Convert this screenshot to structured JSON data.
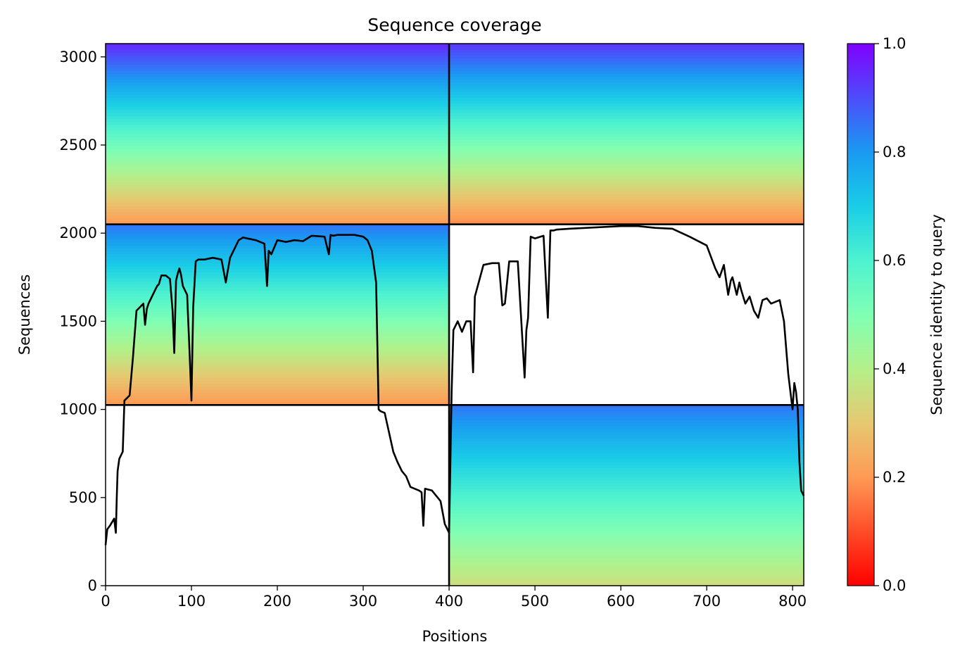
{
  "chart_data": {
    "type": "heatmap",
    "title": "Sequence coverage",
    "xlabel": "Positions",
    "ylabel": "Sequences",
    "xlim": [
      0,
      813
    ],
    "ylim": [
      0,
      3075
    ],
    "x_ticks": [
      "0",
      "100",
      "200",
      "300",
      "400",
      "500",
      "600",
      "700",
      "800"
    ],
    "y_ticks": [
      "0",
      "500",
      "1000",
      "1500",
      "2000",
      "2500",
      "3000"
    ],
    "colorbar": {
      "label": "Sequence identity to query",
      "range": [
        0.0,
        1.0
      ],
      "ticks": [
        "0.0",
        "0.2",
        "0.4",
        "0.6",
        "0.8",
        "1.0"
      ],
      "colormap": "rainbow_r"
    },
    "blocks": [
      {
        "x0": 0,
        "x1": 400,
        "y0": 2050,
        "y1": 3075,
        "filled_x": [
          0,
          400
        ],
        "identity_top": 0.95,
        "identity_bottom": 0.2
      },
      {
        "x0": 400,
        "x1": 813,
        "y0": 2050,
        "y1": 3075,
        "filled_x": [
          400,
          813
        ],
        "identity_top": 0.93,
        "identity_bottom": 0.18
      },
      {
        "x0": 0,
        "x1": 400,
        "y0": 1025,
        "y1": 2050,
        "filled_x": [
          0,
          400
        ],
        "identity_top": 0.85,
        "identity_bottom": 0.2
      },
      {
        "x0": 400,
        "x1": 813,
        "y0": 0,
        "y1": 1025,
        "filled_x": [
          400,
          813
        ],
        "identity_top": 0.85,
        "identity_bottom": 0.35
      }
    ],
    "block_boundaries": {
      "x": [
        400
      ],
      "y": [
        1025,
        2050
      ]
    },
    "coverage_line": {
      "x": [
        0,
        2,
        5,
        10,
        12,
        13,
        14,
        16,
        20,
        22,
        24,
        28,
        32,
        36,
        40,
        44,
        46,
        48,
        50,
        55,
        60,
        62,
        65,
        70,
        75,
        78,
        80,
        82,
        84,
        86,
        88,
        90,
        95,
        98,
        100,
        102,
        105,
        108,
        115,
        125,
        135,
        140,
        142,
        145,
        155,
        160,
        165,
        175,
        185,
        188,
        190,
        193,
        200,
        210,
        220,
        230,
        240,
        255,
        260,
        262,
        265,
        270,
        280,
        290,
        300,
        305,
        310,
        315,
        318,
        320,
        325,
        330,
        335,
        340,
        345,
        350,
        355,
        365,
        368,
        370,
        372,
        380,
        390,
        395,
        400,
        403,
        405,
        410,
        415,
        420,
        425,
        428,
        430,
        440,
        450,
        458,
        462,
        465,
        470,
        480,
        488,
        490,
        492,
        495,
        500,
        510,
        515,
        518,
        522,
        525,
        540,
        560,
        580,
        600,
        620,
        640,
        660,
        680,
        700,
        710,
        715,
        720,
        725,
        728,
        730,
        735,
        738,
        740,
        745,
        750,
        755,
        760,
        765,
        770,
        775,
        780,
        785,
        790,
        795,
        800,
        802,
        804,
        806,
        808,
        810,
        812,
        813
      ],
      "y": [
        230,
        320,
        340,
        380,
        300,
        500,
        650,
        720,
        760,
        1050,
        1060,
        1080,
        1300,
        1560,
        1580,
        1600,
        1480,
        1570,
        1600,
        1650,
        1700,
        1710,
        1760,
        1760,
        1740,
        1560,
        1320,
        1730,
        1770,
        1800,
        1760,
        1700,
        1650,
        1300,
        1050,
        1580,
        1840,
        1850,
        1850,
        1860,
        1850,
        1720,
        1780,
        1860,
        1960,
        1975,
        1970,
        1960,
        1940,
        1700,
        1900,
        1880,
        1960,
        1950,
        1960,
        1955,
        1985,
        1980,
        1880,
        1990,
        1985,
        1990,
        1990,
        1990,
        1980,
        1960,
        1900,
        1720,
        1000,
        990,
        980,
        870,
        760,
        700,
        650,
        620,
        560,
        540,
        530,
        340,
        550,
        540,
        480,
        350,
        300,
        1100,
        1450,
        1500,
        1440,
        1500,
        1500,
        1210,
        1640,
        1820,
        1830,
        1830,
        1590,
        1600,
        1840,
        1840,
        1180,
        1450,
        1520,
        1980,
        1970,
        1985,
        1520,
        2015,
        2015,
        2020,
        2025,
        2030,
        2035,
        2040,
        2040,
        2030,
        2025,
        1980,
        1930,
        1800,
        1750,
        1820,
        1650,
        1730,
        1750,
        1650,
        1720,
        1680,
        1600,
        1640,
        1560,
        1520,
        1620,
        1630,
        1600,
        1610,
        1620,
        1500,
        1200,
        1000,
        1150,
        1100,
        1000,
        700,
        540,
        520,
        510
      ]
    }
  }
}
